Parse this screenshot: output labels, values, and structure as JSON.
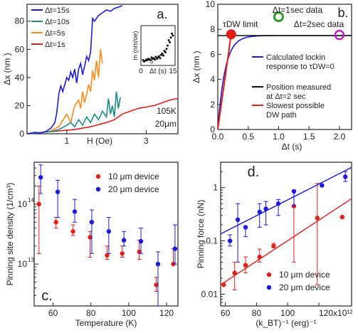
{
  "chart_data": [
    {
      "panel": "a.",
      "type": "line",
      "xlabel": "H (Oe)",
      "ylabel": "Δx (nm )",
      "xlim": [
        0,
        3.8
      ],
      "ylim": [
        0,
        92
      ],
      "xticks": [
        1,
        3
      ],
      "yticks": [
        0,
        20,
        40,
        60,
        80
      ],
      "annotation": [
        "105K",
        "20μm"
      ],
      "series": [
        {
          "name": "Δt=15s",
          "color": "#1a1adb",
          "x": [
            0.0,
            0.1,
            0.2,
            0.3,
            0.4,
            0.5,
            0.6,
            0.7,
            0.75,
            0.8,
            0.85,
            0.9,
            0.95,
            1.0,
            1.05,
            1.1,
            1.15,
            1.2,
            1.25,
            1.3,
            1.35,
            1.4,
            1.45,
            1.5,
            1.55,
            1.6,
            1.65,
            1.7,
            1.8,
            1.9,
            2.0,
            2.1,
            2.2,
            2.3,
            2.4
          ],
          "y": [
            0,
            0.5,
            1,
            0.5,
            1,
            2,
            4,
            8,
            15,
            28,
            34,
            30,
            35,
            40,
            38,
            44,
            40,
            46,
            36,
            46,
            50,
            42,
            48,
            55,
            52,
            58,
            82,
            80,
            84,
            86,
            88,
            87,
            89,
            90,
            91
          ]
        },
        {
          "name": "Δt=10s",
          "color": "#1a8a8a",
          "x": [
            0.0,
            0.2,
            0.4,
            0.6,
            0.8,
            1.0,
            1.1,
            1.2,
            1.3,
            1.4,
            1.5,
            1.6,
            1.7,
            1.8,
            1.9,
            2.0,
            2.05,
            2.1,
            2.15,
            2.2,
            2.25,
            2.3,
            2.35
          ],
          "y": [
            0,
            0.5,
            1,
            1.5,
            3,
            6,
            8,
            5,
            10,
            6,
            12,
            8,
            14,
            10,
            16,
            12,
            25,
            14,
            20,
            12,
            30,
            18,
            26
          ]
        },
        {
          "name": "Δt=5s",
          "color": "#ff8c1a",
          "x": [
            0.0,
            0.2,
            0.4,
            0.6,
            0.8,
            1.0,
            1.1,
            1.2,
            1.3,
            1.35,
            1.4,
            1.45,
            1.5,
            1.55,
            1.6,
            1.65,
            1.7,
            1.75,
            1.8,
            1.85,
            1.9
          ],
          "y": [
            0,
            0.5,
            1,
            2,
            5,
            14,
            8,
            20,
            24,
            18,
            30,
            22,
            28,
            35,
            30,
            45,
            38,
            52,
            40,
            60,
            50
          ]
        },
        {
          "name": "Δt=1s",
          "color": "#e0201a",
          "x": [
            0.0,
            0.4,
            0.8,
            1.2,
            1.6,
            2.0,
            2.2,
            2.4,
            2.6,
            2.8,
            3.0,
            3.2,
            3.4,
            3.6,
            3.8
          ],
          "y": [
            0,
            1,
            2,
            3,
            5,
            8,
            10,
            14,
            16,
            18,
            19,
            20,
            22,
            24,
            25
          ]
        }
      ],
      "inset": {
        "type": "scatter",
        "xlabel": "Δt (s)",
        "ylabel": "m (nm/oe)",
        "xticks": [
          0,
          15
        ],
        "xtick_mid": 5,
        "xlim": [
          0,
          16
        ],
        "ylim": [
          0,
          60
        ],
        "x": [
          1,
          1.5,
          2,
          2.5,
          3,
          3.5,
          4,
          4.5,
          5,
          5.5,
          6,
          6.5,
          7,
          7.5,
          8,
          8.5,
          9,
          9.5,
          10,
          10.5,
          11,
          11.5,
          12,
          12.5,
          13,
          13.5,
          14,
          14.5,
          15
        ],
        "y": [
          8,
          6,
          7,
          9,
          8,
          10,
          9,
          8,
          12,
          10,
          11,
          9,
          13,
          10,
          12,
          14,
          11,
          16,
          18,
          15,
          22,
          20,
          25,
          30,
          38,
          35,
          42,
          48,
          45
        ]
      }
    },
    {
      "panel": "b.",
      "type": "line",
      "xlabel": "Δt (s)",
      "ylabel": "Δx (nm )",
      "xlim": [
        0,
        2.2
      ],
      "ylim": [
        0,
        10
      ],
      "xticks": [
        0.0,
        0.5,
        1.0,
        1.5,
        2.0
      ],
      "yticks": [
        0,
        2,
        4,
        6,
        8,
        10
      ],
      "series": [
        {
          "name": "Calculated lockin response to τDW=0",
          "color": "#1a1adb"
        },
        {
          "name": "Position measured at Δt=2 sec",
          "color": "#111111",
          "x": [
            0,
            2.2
          ],
          "y": [
            7.5,
            7.5
          ]
        },
        {
          "name": "Slowest possible DW path",
          "color": "#e0201a",
          "x": [
            0,
            0.22
          ],
          "y": [
            0,
            7.6
          ]
        }
      ],
      "markers": [
        {
          "label": "τDW limit",
          "x": 0.22,
          "y": 7.6,
          "color": "#e0201a",
          "filled": true
        },
        {
          "label": "Δt=1sec data",
          "x": 1.0,
          "y": 9.0,
          "color": "#2a9a2a",
          "filled": false
        },
        {
          "label": "Δt=2sec data",
          "x": 2.0,
          "y": 7.55,
          "color": "#c020c0",
          "filled": false
        }
      ]
    },
    {
      "panel": "c.",
      "type": "scatter",
      "xlabel": "Temperature (K)",
      "ylabel": "Pinning site density (1/cm³)",
      "scale_y": "log",
      "xlim": [
        50,
        126
      ],
      "ylim": [
        2000000000000.0,
        500000000000000.0
      ],
      "xticks": [
        60,
        80,
        100,
        120
      ],
      "series": [
        {
          "name": "10 μm device",
          "color": "#e0201a",
          "x": [
            53,
            62,
            71,
            80,
            89,
            97,
            106,
            115,
            124
          ],
          "y": [
            100000000000000.0,
            50000000000000.0,
            35000000000000.0,
            28000000000000.0,
            14000000000000.0,
            15000000000000.0,
            16000000000000.0,
            4500000000000.0,
            10000000000000.0
          ],
          "yerr_low": [
            15000000000000.0,
            40000000000000.0,
            30000000000000.0,
            13000000000000.0,
            12000000000000.0,
            13000000000000.0,
            12000000000000.0,
            3500000000000.0,
            10000000000000.0
          ],
          "yerr_high": [
            200000000000000.0,
            60000000000000.0,
            45000000000000.0,
            35000000000000.0,
            20000000000000.0,
            20000000000000.0,
            25000000000000.0,
            6000000000000.0,
            18000000000000.0
          ]
        },
        {
          "name": "20 μm device",
          "color": "#1a1adb",
          "x": [
            53,
            62,
            71,
            80,
            89,
            97,
            106,
            115,
            124
          ],
          "y": [
            280000000000000.0,
            160000000000000.0,
            75000000000000.0,
            50000000000000.0,
            35000000000000.0,
            25000000000000.0,
            24000000000000.0,
            10000000000000.0,
            18000000000000.0
          ],
          "yerr_low": [
            150000000000000.0,
            60000000000000.0,
            50000000000000.0,
            15000000000000.0,
            15000000000000.0,
            20000000000000.0,
            15000000000000.0,
            2000000000000.0,
            10000000000000.0
          ],
          "yerr_high": [
            450000000000000.0,
            250000000000000.0,
            120000000000000.0,
            80000000000000.0,
            60000000000000.0,
            35000000000000.0,
            40000000000000.0,
            16000000000000.0,
            45000000000000.0
          ]
        }
      ]
    },
    {
      "panel": "d.",
      "type": "scatter",
      "xlabel": "(k_BT)⁻¹ (erg)⁻¹",
      "ylabel": "Pinning force (nN)",
      "scale_y": "log",
      "xlim": [
        57,
        141
      ],
      "ylim": [
        0.006,
        3
      ],
      "xticks": [
        60,
        80,
        100,
        120
      ],
      "xtick_labels": [
        "60",
        "80",
        "100",
        "120x10¹²"
      ],
      "yticks": [
        0.01,
        0.1,
        1
      ],
      "series": [
        {
          "name": "10 μm device",
          "color": "#e0201a",
          "x": [
            59,
            66,
            73,
            82,
            91,
            104,
            119,
            135
          ],
          "y": [
            0.015,
            0.025,
            0.035,
            0.05,
            0.08,
            0.45,
            0.27,
            0.28
          ],
          "yerr_low": [
            0.015,
            0.012,
            0.025,
            0.04,
            0.075,
            0.04,
            0.015,
            0.28
          ],
          "yerr_high": [
            0.015,
            0.04,
            0.05,
            0.07,
            0.09,
            0.9,
            1.2,
            0.28
          ],
          "fit_x": [
            57,
            141
          ],
          "fit_y": [
            0.015,
            0.62
          ]
        },
        {
          "name": "20 μm device",
          "color": "#1a1adb",
          "x": [
            63,
            68,
            73,
            82,
            86,
            94,
            104,
            122,
            137
          ],
          "y": [
            0.1,
            0.25,
            0.18,
            0.35,
            0.4,
            0.5,
            0.85,
            1.1,
            1.6
          ],
          "yerr_low": [
            0.08,
            0.04,
            0.12,
            0.18,
            0.2,
            0.3,
            0.45,
            1.1,
            1.3
          ],
          "yerr_high": [
            0.13,
            0.5,
            0.18,
            0.5,
            0.55,
            0.6,
            0.85,
            1.1,
            2.0
          ],
          "fit_x": [
            57,
            141
          ],
          "fit_y": [
            0.135,
            2.4
          ]
        }
      ]
    }
  ],
  "colors": {
    "blue": "#1a1adb",
    "red": "#e0201a",
    "teal": "#1a8a8a",
    "orange": "#ff8c1a",
    "green": "#2a9a2a",
    "magenta": "#c020c0",
    "axis": "#222222"
  }
}
